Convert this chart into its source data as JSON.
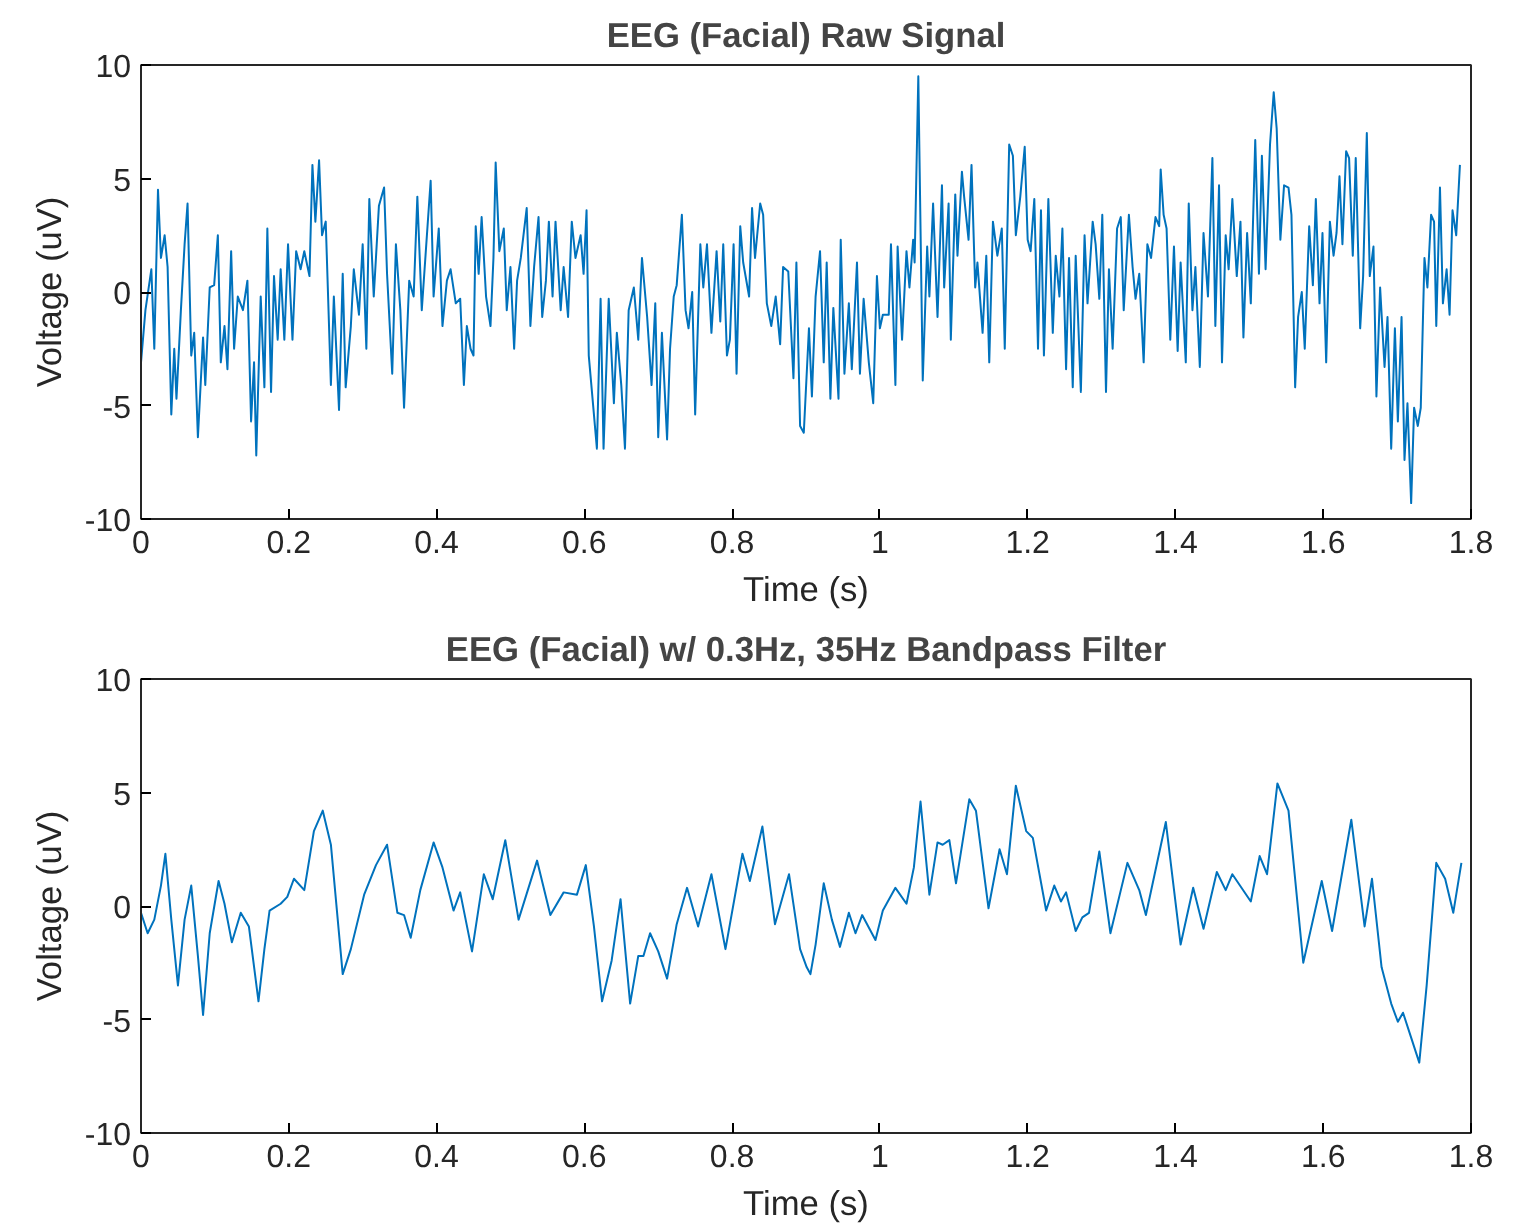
{
  "chart_data": [
    {
      "type": "line",
      "title": "EEG (Facial) Raw Signal",
      "xlabel": "Time (s)",
      "ylabel": "Voltage (uV)",
      "xlim": [
        0,
        1.8
      ],
      "ylim": [
        -10,
        10
      ],
      "xticks": [
        0,
        0.2,
        0.4,
        0.6,
        0.8,
        1,
        1.2,
        1.4,
        1.6,
        1.8
      ],
      "yticks": [
        -10,
        -5,
        0,
        5,
        10
      ],
      "grid": false,
      "series": [
        {
          "color": "#0072bd",
          "x": [
            0.0,
            0.006,
            0.014,
            0.018,
            0.023,
            0.027,
            0.032,
            0.036,
            0.041,
            0.045,
            0.048,
            0.054,
            0.059,
            0.063,
            0.068,
            0.072,
            0.077,
            0.084,
            0.087,
            0.093,
            0.099,
            0.104,
            0.108,
            0.113,
            0.117,
            0.122,
            0.126,
            0.131,
            0.138,
            0.144,
            0.149,
            0.153,
            0.156,
            0.162,
            0.167,
            0.171,
            0.176,
            0.18,
            0.185,
            0.189,
            0.194,
            0.199,
            0.205,
            0.21,
            0.216,
            0.221,
            0.228,
            0.232,
            0.236,
            0.241,
            0.245,
            0.25,
            0.257,
            0.261,
            0.268,
            0.273,
            0.277,
            0.284,
            0.288,
            0.295,
            0.3,
            0.305,
            0.309,
            0.315,
            0.322,
            0.329,
            0.333,
            0.34,
            0.345,
            0.351,
            0.356,
            0.363,
            0.369,
            0.374,
            0.38,
            0.392,
            0.396,
            0.403,
            0.408,
            0.414,
            0.419,
            0.426,
            0.432,
            0.437,
            0.441,
            0.446,
            0.45,
            0.453,
            0.457,
            0.461,
            0.467,
            0.473,
            0.477,
            0.48,
            0.485,
            0.491,
            0.495,
            0.5,
            0.505,
            0.509,
            0.514,
            0.522,
            0.527,
            0.532,
            0.538,
            0.543,
            0.548,
            0.552,
            0.557,
            0.561,
            0.568,
            0.572,
            0.578,
            0.583,
            0.588,
            0.595,
            0.599,
            0.603,
            0.606,
            0.613,
            0.617,
            0.622,
            0.626,
            0.633,
            0.64,
            0.644,
            0.65,
            0.655,
            0.66,
            0.667,
            0.673,
            0.678,
            0.685,
            0.691,
            0.696,
            0.7,
            0.705,
            0.712,
            0.716,
            0.721,
            0.725,
            0.732,
            0.737,
            0.741,
            0.746,
            0.75,
            0.757,
            0.761,
            0.766,
            0.772,
            0.779,
            0.784,
            0.788,
            0.793,
            0.797,
            0.802,
            0.806,
            0.811,
            0.815,
            0.823,
            0.827,
            0.831,
            0.838,
            0.842,
            0.847,
            0.853,
            0.859,
            0.865,
            0.869,
            0.876,
            0.883,
            0.887,
            0.892,
            0.897,
            0.904,
            0.908,
            0.913,
            0.919,
            0.924,
            0.928,
            0.933,
            0.937,
            0.944,
            0.947,
            0.952,
            0.958,
            0.962,
            0.969,
            0.973,
            0.978,
            0.985,
            0.991,
            0.996,
            1.0,
            1.004,
            1.012,
            1.015,
            1.021,
            1.024,
            1.03,
            1.036,
            1.04,
            1.045,
            1.047,
            1.052,
            1.058,
            1.064,
            1.067,
            1.072,
            1.078,
            1.084,
            1.087,
            1.093,
            1.096,
            1.102,
            1.105,
            1.111,
            1.114,
            1.12,
            1.124,
            1.129,
            1.132,
            1.139,
            1.144,
            1.148,
            1.153,
            1.159,
            1.165,
            1.169,
            1.175,
            1.18,
            1.184,
            1.19,
            1.196,
            1.2,
            1.204,
            1.209,
            1.214,
            1.218,
            1.222,
            1.228,
            1.234,
            1.238,
            1.243,
            1.247,
            1.252,
            1.256,
            1.261,
            1.265,
            1.272,
            1.277,
            1.281,
            1.288,
            1.292,
            1.297,
            1.301,
            1.306,
            1.31,
            1.315,
            1.321,
            1.326,
            1.33,
            1.337,
            1.342,
            1.346,
            1.351,
            1.357,
            1.362,
            1.367,
            1.373,
            1.378,
            1.38,
            1.384,
            1.388,
            1.393,
            1.398,
            1.403,
            1.407,
            1.414,
            1.418,
            1.423,
            1.427,
            1.433,
            1.438,
            1.444,
            1.45,
            1.454,
            1.459,
            1.463,
            1.468,
            1.472,
            1.477,
            1.483,
            1.488,
            1.492,
            1.497,
            1.502,
            1.508,
            1.513,
            1.517,
            1.522,
            1.528,
            1.533,
            1.537,
            1.542,
            1.547,
            1.553,
            1.557,
            1.562,
            1.566,
            1.571,
            1.575,
            1.581,
            1.586,
            1.59,
            1.595,
            1.599,
            1.604,
            1.609,
            1.614,
            1.618,
            1.622,
            1.626,
            1.631,
            1.635,
            1.64,
            1.644,
            1.65,
            1.654,
            1.659,
            1.663,
            1.668,
            1.672,
            1.677,
            1.683,
            1.687,
            1.692,
            1.697,
            1.701,
            1.706,
            1.71,
            1.714,
            1.719,
            1.723,
            1.728,
            1.732,
            1.737,
            1.741,
            1.746,
            1.75,
            1.753,
            1.758,
            1.762,
            1.767,
            1.771,
            1.775,
            1.78,
            1.785
          ],
          "values": [
            -3.1,
            -0.8,
            1.0,
            -2.5,
            4.5,
            1.5,
            2.5,
            1.1,
            -5.4,
            -2.5,
            -4.7,
            -0.8,
            2.1,
            3.9,
            -2.8,
            -1.8,
            -6.4,
            -2.0,
            -4.1,
            0.2,
            0.3,
            2.5,
            -3.1,
            -1.5,
            -3.4,
            1.8,
            -2.5,
            -0.2,
            -0.8,
            0.5,
            -5.7,
            -3.1,
            -7.2,
            -0.2,
            -4.2,
            2.8,
            -4.4,
            0.7,
            -2.1,
            1.0,
            -2.1,
            2.1,
            -2.1,
            1.8,
            1.0,
            1.8,
            0.7,
            5.6,
            3.1,
            5.8,
            2.5,
            3.1,
            -4.1,
            -0.2,
            -5.2,
            0.8,
            -4.2,
            -1.5,
            1.0,
            -1.0,
            2.1,
            -2.5,
            4.1,
            -0.2,
            3.8,
            4.6,
            0.8,
            -3.6,
            2.1,
            -0.8,
            -5.1,
            0.5,
            -0.2,
            4.2,
            -0.8,
            4.9,
            -0.2,
            2.8,
            -1.5,
            0.5,
            1.0,
            -0.5,
            -0.3,
            -4.1,
            -1.5,
            -2.5,
            -2.8,
            2.9,
            0.8,
            3.3,
            -0.2,
            -1.5,
            1.5,
            5.7,
            1.8,
            2.8,
            -0.8,
            1.1,
            -2.5,
            0.5,
            1.5,
            3.7,
            -1.5,
            1.1,
            3.3,
            -1.1,
            0.5,
            3.1,
            -0.2,
            3.1,
            -0.8,
            1.1,
            -1.1,
            3.1,
            1.5,
            2.5,
            0.8,
            3.6,
            -2.8,
            -5.4,
            -6.9,
            -0.3,
            -6.9,
            -0.3,
            -4.9,
            -1.8,
            -4.1,
            -6.9,
            -0.8,
            0.2,
            -2.1,
            1.5,
            -1.1,
            -4.1,
            -0.5,
            -6.4,
            -1.8,
            -6.5,
            -2.5,
            -0.2,
            0.3,
            3.4,
            -0.8,
            -1.6,
            0.0,
            -5.4,
            2.1,
            0.2,
            2.1,
            -1.8,
            1.8,
            -1.3,
            2.1,
            -2.8,
            -2.1,
            2.1,
            -3.6,
            2.9,
            1.3,
            -0.2,
            3.7,
            1.5,
            3.9,
            3.4,
            -0.5,
            -1.5,
            -0.2,
            -2.3,
            1.1,
            0.9,
            -3.8,
            1.3,
            -5.9,
            -6.2,
            -1.6,
            -4.6,
            -0.2,
            1.8,
            -3.1,
            1.3,
            -4.7,
            -0.7,
            -4.7,
            2.3,
            -3.6,
            -0.5,
            -3.4,
            1.3,
            -3.6,
            -0.3,
            -3.1,
            -4.9,
            0.7,
            -1.6,
            -1.0,
            -1.0,
            2.1,
            -4.1,
            2.0,
            -2.1,
            1.8,
            0.2,
            2.3,
            1.3,
            9.5,
            -3.9,
            2.0,
            -0.2,
            3.9,
            -1.1,
            4.7,
            0.2,
            3.9,
            -2.1,
            4.3,
            1.6,
            5.3,
            4.2,
            2.3,
            5.6,
            0.2,
            1.3,
            -1.8,
            1.6,
            -3.1,
            3.1,
            1.6,
            2.8,
            -2.5,
            6.5,
            6.0,
            2.5,
            4.2,
            6.4,
            2.3,
            1.8,
            4.1,
            -2.5,
            3.6,
            -2.8,
            4.1,
            -1.8,
            1.6,
            -0.2,
            2.8,
            -3.4,
            1.5,
            -4.2,
            1.6,
            -4.4,
            2.5,
            -0.5,
            3.1,
            2.1,
            -0.3,
            3.4,
            -4.4,
            1.0,
            -2.5,
            2.8,
            3.3,
            -0.8,
            3.4,
            1.1,
            -0.3,
            0.8,
            -3.1,
            2.1,
            1.5,
            3.3,
            2.9,
            5.4,
            3.4,
            2.8,
            -2.1,
            2.0,
            -2.6,
            1.3,
            -3.1,
            3.9,
            -0.8,
            1.1,
            -3.3,
            2.6,
            -0.2,
            5.9,
            -1.5,
            4.7,
            -3.1,
            2.5,
            1.0,
            4.1,
            0.7,
            3.1,
            -2.0,
            2.6,
            -0.5,
            6.7,
            0.8,
            6.0,
            1.0,
            6.5,
            8.8,
            7.2,
            2.3,
            4.7,
            4.6,
            3.4,
            -4.2,
            -1.1,
            0.0,
            -2.5,
            2.9,
            0.3,
            4.1,
            -0.5,
            2.6,
            -3.1,
            3.1,
            1.6,
            2.6,
            5.1,
            2.1,
            6.2,
            5.9,
            1.6,
            5.9,
            -1.6,
            0.7,
            7.0,
            0.7,
            2.0,
            -4.6,
            0.2,
            -3.3,
            -1.1,
            -6.9,
            -1.6,
            -5.7,
            -1.1,
            -7.4,
            -4.9,
            -9.3,
            -5.1,
            -5.9,
            -5.1,
            1.5,
            0.2,
            3.4,
            3.1,
            -1.5,
            4.6,
            -0.5,
            1.0,
            -1.0,
            3.6,
            2.5,
            5.6
          ]
        }
      ]
    },
    {
      "type": "line",
      "title": "EEG (Facial) w/ 0.3Hz, 35Hz Bandpass Filter",
      "xlabel": "Time (s)",
      "ylabel": "Voltage (uV)",
      "xlim": [
        0,
        1.8
      ],
      "ylim": [
        -10,
        10
      ],
      "xticks": [
        0,
        0.2,
        0.4,
        0.6,
        0.8,
        1,
        1.2,
        1.4,
        1.6,
        1.8
      ],
      "yticks": [
        -10,
        -5,
        0,
        5,
        10
      ],
      "grid": false,
      "series": [
        {
          "color": "#0072bd",
          "x": [
            0.0,
            0.009,
            0.018,
            0.027,
            0.033,
            0.041,
            0.05,
            0.059,
            0.068,
            0.077,
            0.084,
            0.093,
            0.105,
            0.113,
            0.123,
            0.135,
            0.146,
            0.159,
            0.167,
            0.174,
            0.189,
            0.198,
            0.207,
            0.221,
            0.234,
            0.246,
            0.257,
            0.273,
            0.284,
            0.302,
            0.318,
            0.333,
            0.347,
            0.356,
            0.365,
            0.378,
            0.396,
            0.408,
            0.423,
            0.432,
            0.448,
            0.464,
            0.476,
            0.493,
            0.511,
            0.536,
            0.554,
            0.572,
            0.59,
            0.602,
            0.613,
            0.624,
            0.637,
            0.649,
            0.662,
            0.673,
            0.68,
            0.689,
            0.7,
            0.712,
            0.725,
            0.739,
            0.754,
            0.772,
            0.791,
            0.814,
            0.824,
            0.841,
            0.858,
            0.877,
            0.892,
            0.901,
            0.906,
            0.913,
            0.924,
            0.935,
            0.946,
            0.958,
            0.967,
            0.976,
            0.994,
            1.004,
            1.021,
            1.036,
            1.046,
            1.055,
            1.067,
            1.078,
            1.085,
            1.094,
            1.103,
            1.121,
            1.13,
            1.147,
            1.162,
            1.172,
            1.184,
            1.198,
            1.207,
            1.225,
            1.236,
            1.245,
            1.252,
            1.265,
            1.274,
            1.283,
            1.297,
            1.312,
            1.335,
            1.351,
            1.36,
            1.387,
            1.407,
            1.424,
            1.438,
            1.456,
            1.468,
            1.477,
            1.502,
            1.514,
            1.524,
            1.538,
            1.553,
            1.573,
            1.598,
            1.612,
            1.638,
            1.656,
            1.666,
            1.679,
            1.692,
            1.701,
            1.708,
            1.719,
            1.73,
            1.74,
            1.753,
            1.765,
            1.776,
            1.787
          ],
          "values": [
            -0.3,
            -1.2,
            -0.6,
            0.9,
            2.3,
            -0.6,
            -3.5,
            -0.6,
            0.9,
            -2.2,
            -4.8,
            -1.2,
            1.1,
            0.1,
            -1.6,
            -0.3,
            -0.9,
            -4.2,
            -1.9,
            -0.2,
            0.1,
            0.4,
            1.2,
            0.7,
            3.3,
            4.2,
            2.7,
            -3.0,
            -1.9,
            0.5,
            1.8,
            2.7,
            -0.3,
            -0.4,
            -1.4,
            0.7,
            2.8,
            1.7,
            -0.2,
            0.6,
            -2.0,
            1.4,
            0.3,
            2.9,
            -0.6,
            2.0,
            -0.4,
            0.6,
            0.5,
            1.8,
            -0.9,
            -4.2,
            -2.4,
            0.3,
            -4.3,
            -2.2,
            -2.2,
            -1.2,
            -2.0,
            -3.2,
            -0.8,
            0.8,
            -0.9,
            1.4,
            -1.9,
            2.3,
            1.1,
            3.5,
            -0.8,
            1.4,
            -1.9,
            -2.7,
            -3.0,
            -1.7,
            1.0,
            -0.6,
            -1.8,
            -0.3,
            -1.2,
            -0.4,
            -1.5,
            -0.2,
            0.8,
            0.1,
            1.7,
            4.6,
            0.5,
            2.8,
            2.7,
            2.9,
            1.0,
            4.7,
            4.2,
            -0.1,
            2.5,
            1.4,
            5.3,
            3.3,
            3.0,
            -0.2,
            0.9,
            0.2,
            0.6,
            -1.1,
            -0.5,
            -0.3,
            2.4,
            -1.2,
            1.9,
            0.7,
            -0.4,
            3.7,
            -1.7,
            0.8,
            -1.0,
            1.5,
            0.7,
            1.4,
            0.2,
            2.2,
            1.4,
            5.4,
            4.2,
            -2.5,
            1.1,
            -1.1,
            3.8,
            -0.9,
            1.2,
            -2.7,
            -4.3,
            -5.1,
            -4.7,
            -5.8,
            -6.9,
            -3.5,
            1.9,
            1.2,
            -0.3,
            1.9
          ]
        }
      ]
    }
  ]
}
